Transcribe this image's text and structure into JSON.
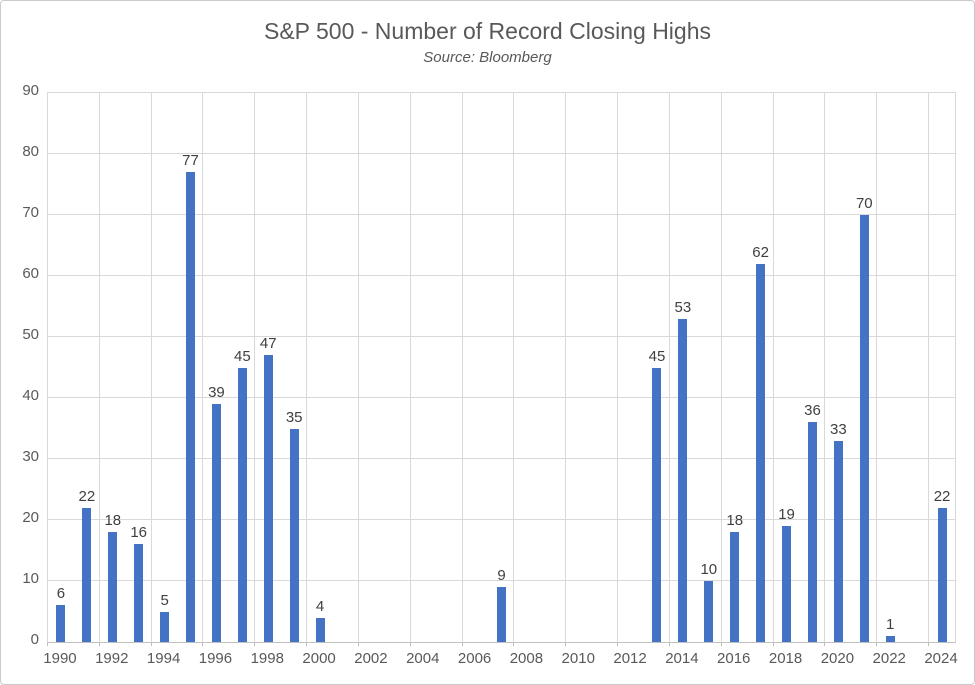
{
  "title": "S&P 500 - Number of Record Closing Highs",
  "subtitle": "Source: Bloomberg",
  "chart_data": {
    "type": "bar",
    "title": "S&P 500 - Number of Record Closing Highs",
    "subtitle": "Source: Bloomberg",
    "x": [
      1990,
      1991,
      1992,
      1993,
      1994,
      1995,
      1996,
      1997,
      1998,
      1999,
      2000,
      2001,
      2002,
      2003,
      2004,
      2005,
      2006,
      2007,
      2008,
      2009,
      2010,
      2011,
      2012,
      2013,
      2014,
      2015,
      2016,
      2017,
      2018,
      2019,
      2020,
      2021,
      2022,
      2023,
      2024
    ],
    "values": [
      6,
      22,
      18,
      16,
      5,
      77,
      39,
      45,
      47,
      35,
      4,
      0,
      0,
      0,
      0,
      0,
      0,
      9,
      0,
      0,
      0,
      0,
      0,
      45,
      53,
      10,
      18,
      62,
      19,
      36,
      33,
      70,
      1,
      0,
      22
    ],
    "xlabel": "",
    "ylabel": "",
    "ylim": [
      0,
      90
    ],
    "ytick_interval": 10,
    "xtick_interval": 2,
    "grid": true,
    "legend": false,
    "data_labels_on_nonzero_bars": true,
    "bar_color": "#4472c4",
    "gridline_color": "#d9d9d9",
    "axis_line_color": "#bfbfbf",
    "data_label_color": "#404040",
    "axis_label_color": "#595959",
    "title_color": "#595959"
  }
}
